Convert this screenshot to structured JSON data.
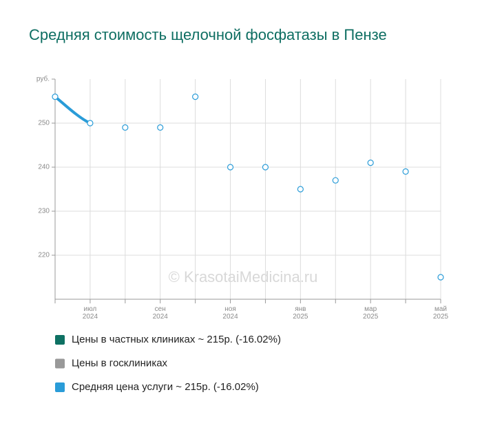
{
  "chart_data": {
    "type": "line",
    "title": "Средняя стоимость щелочной фосфатазы в Пензе",
    "watermark": "© KrasotaiMedicina.ru",
    "categories": [
      null,
      "июл 2024",
      null,
      "сен 2024",
      null,
      "ноя 2024",
      null,
      "янв 2025",
      null,
      "мар 2025",
      null,
      "май 2025"
    ],
    "series": [
      {
        "name": "Цены в частных клиниках ~ 215р. (-16.02%)",
        "color": "#0e7163",
        "values": [
          256,
          250,
          249,
          249,
          256,
          240,
          240,
          235,
          237,
          241,
          239,
          215
        ]
      },
      {
        "name": "Цены в госклиниках",
        "color": "#999999",
        "values": [
          null,
          null,
          null,
          null,
          null,
          null,
          null,
          null,
          null,
          null,
          null,
          null
        ]
      },
      {
        "name": "Средняя цена услуги ~ 215р. (-16.02%)",
        "color": "#2a9cd8",
        "values": [
          256,
          250,
          249,
          249,
          256,
          240,
          240,
          235,
          237,
          241,
          239,
          215
        ]
      }
    ],
    "ylim": [
      210,
      260
    ],
    "yticks": [
      220,
      230,
      240,
      250,
      {
        "value": 260,
        "label": "руб."
      }
    ],
    "grid": true
  }
}
